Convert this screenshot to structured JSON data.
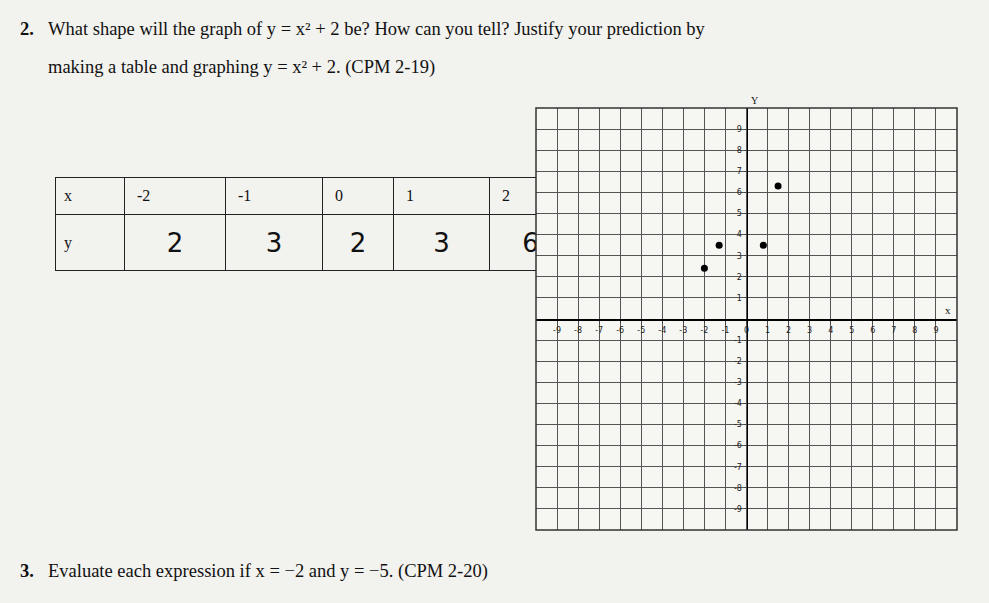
{
  "questions": [
    {
      "number": "2.",
      "lines": [
        "What shape will the graph of y = x² + 2 be? How can you tell? Justify your prediction by",
        "making a table and graphing y = x² + 2. (CPM 2-19)"
      ]
    },
    {
      "number": "3.",
      "lines": [
        "Evaluate each expression if x = −2 and y = −5. (CPM 2-20)"
      ]
    }
  ],
  "table": {
    "rows": [
      [
        "x",
        "-2",
        "-1",
        "0",
        "1",
        "2"
      ],
      [
        "y",
        "2",
        "3",
        "2",
        "3",
        "6"
      ]
    ]
  },
  "chart_data": {
    "type": "scatter",
    "x_label": "x",
    "y_label": "Y",
    "x": [
      -2,
      -1.3,
      0.8,
      1.5
    ],
    "values": [
      2.4,
      3.5,
      3.5,
      6.3
    ],
    "xlim": [
      -10,
      10
    ],
    "ylim": [
      -10,
      10
    ],
    "xticks": [
      -9,
      -8,
      -7,
      -6,
      -5,
      -4,
      -3,
      -2,
      -1,
      0,
      1,
      2,
      3,
      4,
      5,
      6,
      7,
      8,
      9
    ],
    "yticks": [
      -9,
      -8,
      -7,
      -6,
      -5,
      -4,
      -3,
      -2,
      -1,
      1,
      2,
      3,
      4,
      5,
      6,
      7,
      8,
      9
    ],
    "grid": true,
    "color": "#000000",
    "marker": "circle"
  }
}
